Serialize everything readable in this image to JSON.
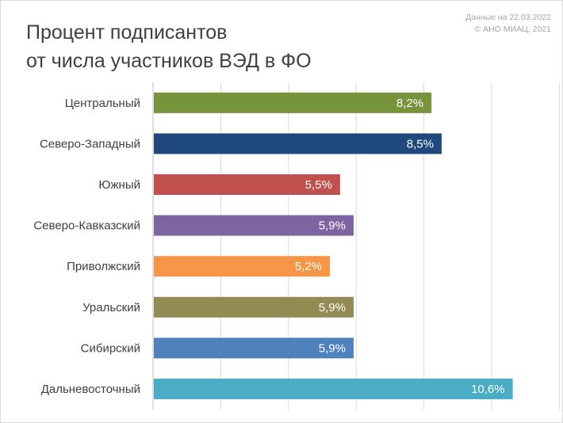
{
  "title": {
    "line1": "Процент подписантов",
    "line2": "от числа участников ВЭД в ФО"
  },
  "source": {
    "line1": "Данные на 22.03.2022",
    "line2": "© АНО МИАЦ, 2021"
  },
  "chart_data": {
    "type": "bar",
    "orientation": "horizontal",
    "title": "Процент подписантов от числа участников ВЭД в ФО",
    "categories": [
      "Центральный",
      "Северо-Западный",
      "Южный",
      "Северо-Кавказский",
      "Приволжский",
      "Уральский",
      "Сибирский",
      "Дальневосточный"
    ],
    "values": [
      8.2,
      8.5,
      5.5,
      5.9,
      5.2,
      5.9,
      5.9,
      10.6
    ],
    "labels": [
      "8,2%",
      "8,5%",
      "5,5%",
      "5,9%",
      "5,2%",
      "5,9%",
      "5,9%",
      "10,6%"
    ],
    "colors": [
      "#77933c",
      "#1f497d",
      "#c0504d",
      "#8064a2",
      "#f79646",
      "#948a54",
      "#4f81bd",
      "#4bacc6"
    ],
    "xlim": [
      0,
      12
    ],
    "grid": true,
    "tick_labels_visible": false,
    "legend": "none"
  }
}
